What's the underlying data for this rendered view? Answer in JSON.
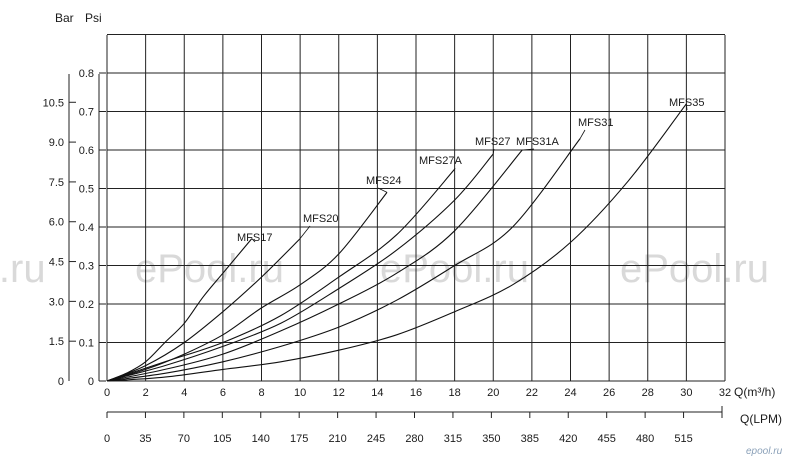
{
  "chart_data": {
    "type": "line",
    "title": "",
    "y_units": [
      "Bar",
      "Psi"
    ],
    "xlabel": "Q(m³/h)",
    "xlabel_secondary": "Q(LPM)",
    "xlim": [
      0,
      32
    ],
    "ylim": [
      0,
      0.8
    ],
    "x_ticks": [
      0,
      2,
      4,
      6,
      8,
      10,
      12,
      14,
      16,
      18,
      20,
      22,
      24,
      26,
      28,
      30,
      32
    ],
    "x_secondary_ticks": [
      0,
      35,
      70,
      105,
      140,
      175,
      210,
      245,
      280,
      315,
      350,
      385,
      420,
      455,
      480,
      515
    ],
    "bar_ticks": [
      "0",
      "0.1",
      "0.2",
      "0.3",
      "0.4",
      "0.5",
      "0.6",
      "0.7",
      "0.8"
    ],
    "psi_ticks": [
      "1.5",
      "3.0",
      "4.5",
      "6.0",
      "7.5",
      "9.0",
      "10.5"
    ],
    "grid": true,
    "series": [
      {
        "name": "MFS17",
        "x": [
          0,
          1,
          2,
          3,
          4,
          5,
          6,
          7,
          7.5
        ],
        "y": [
          0,
          0.02,
          0.05,
          0.1,
          0.15,
          0.22,
          0.28,
          0.34,
          0.37
        ]
      },
      {
        "name": "MFS20",
        "x": [
          0,
          2,
          4,
          6,
          8,
          10
        ],
        "y": [
          0,
          0.04,
          0.1,
          0.18,
          0.27,
          0.37
        ]
      },
      {
        "name": "MFS24",
        "x": [
          0,
          2,
          4,
          6,
          8,
          10,
          12,
          14.5
        ],
        "y": [
          0,
          0.03,
          0.07,
          0.12,
          0.19,
          0.25,
          0.33,
          0.49
        ]
      },
      {
        "name": "MFS27A",
        "x": [
          0,
          3,
          6,
          9,
          12,
          15,
          18
        ],
        "y": [
          0,
          0.05,
          0.1,
          0.17,
          0.27,
          0.38,
          0.55
        ]
      },
      {
        "name": "MFS27",
        "x": [
          0,
          3,
          6,
          9,
          12,
          15,
          18,
          20
        ],
        "y": [
          0,
          0.04,
          0.09,
          0.15,
          0.24,
          0.34,
          0.47,
          0.59
        ]
      },
      {
        "name": "MFS31A",
        "x": [
          0,
          3,
          6,
          9,
          12,
          15,
          18,
          21.5
        ],
        "y": [
          0,
          0.03,
          0.07,
          0.13,
          0.2,
          0.28,
          0.39,
          0.6
        ]
      },
      {
        "name": "MFS31",
        "x": [
          0,
          3,
          6,
          9,
          12,
          15,
          18,
          21,
          24.5
        ],
        "y": [
          0,
          0.02,
          0.05,
          0.09,
          0.14,
          0.21,
          0.3,
          0.4,
          0.63
        ]
      },
      {
        "name": "MFS35",
        "x": [
          0,
          3,
          6,
          9,
          12,
          15,
          18,
          21,
          24,
          27,
          30
        ],
        "y": [
          0,
          0.01,
          0.03,
          0.05,
          0.08,
          0.12,
          0.18,
          0.25,
          0.36,
          0.52,
          0.72
        ]
      }
    ]
  },
  "watermarks": [
    "l.ru",
    "ePool.ru",
    "ePool.ru",
    "ePool.ru"
  ],
  "logo_text": "epool.ru"
}
